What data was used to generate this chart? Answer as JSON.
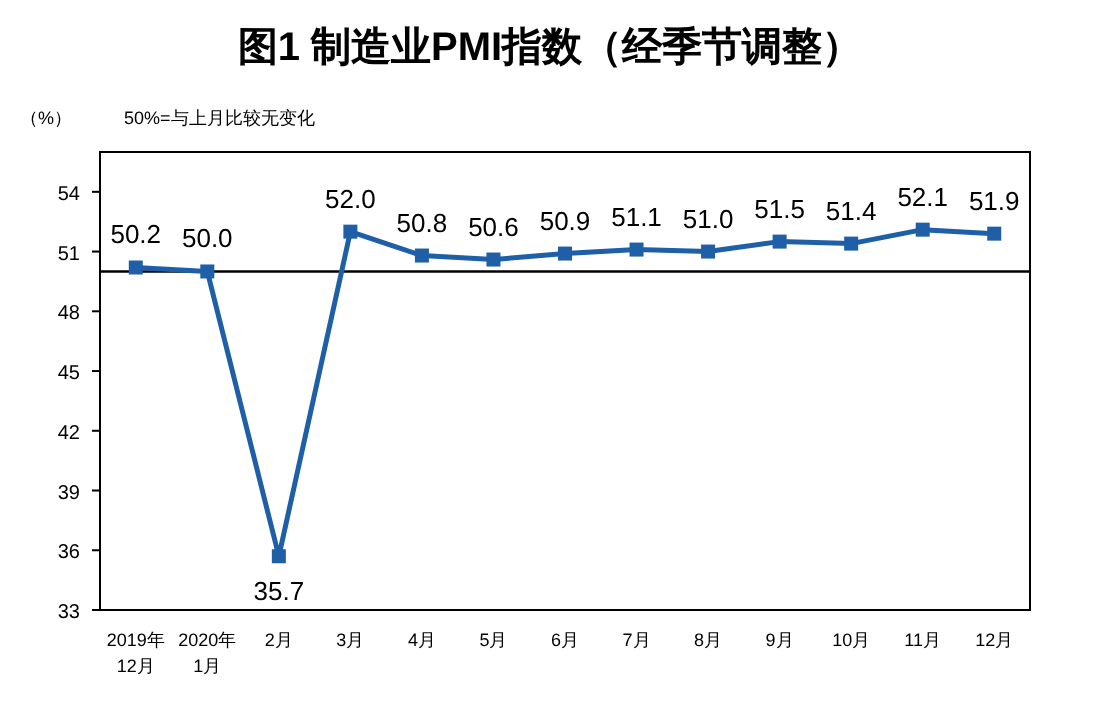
{
  "chart_data": {
    "type": "line",
    "title": "图1  制造业PMI指数（经季节调整）",
    "ylabel": "（%）",
    "annotations": [
      "50%=与上月比较无变化"
    ],
    "categories": [
      "2019年\n12月",
      "2020年\n1月",
      "2月",
      "3月",
      "4月",
      "5月",
      "6月",
      "7月",
      "8月",
      "9月",
      "10月",
      "11月",
      "12月"
    ],
    "series": [
      {
        "color": "#1f5fa8",
        "values": [
          50.2,
          50.0,
          35.7,
          52.0,
          50.8,
          50.6,
          50.9,
          51.1,
          51.0,
          51.5,
          51.4,
          52.1,
          51.9
        ],
        "value_labels": [
          "50.2",
          "50.0",
          "35.7",
          "52.0",
          "50.8",
          "50.6",
          "50.9",
          "51.1",
          "51.0",
          "51.5",
          "51.4",
          "52.1",
          "51.9"
        ]
      }
    ],
    "ylim": [
      33,
      56
    ],
    "yticks": [
      33,
      36,
      39,
      42,
      45,
      48,
      51,
      54
    ],
    "ref_lines": [
      {
        "axis": "y",
        "value": 50,
        "color": "#000000"
      }
    ],
    "marker": "square",
    "line_style": "solid",
    "grid": false
  }
}
